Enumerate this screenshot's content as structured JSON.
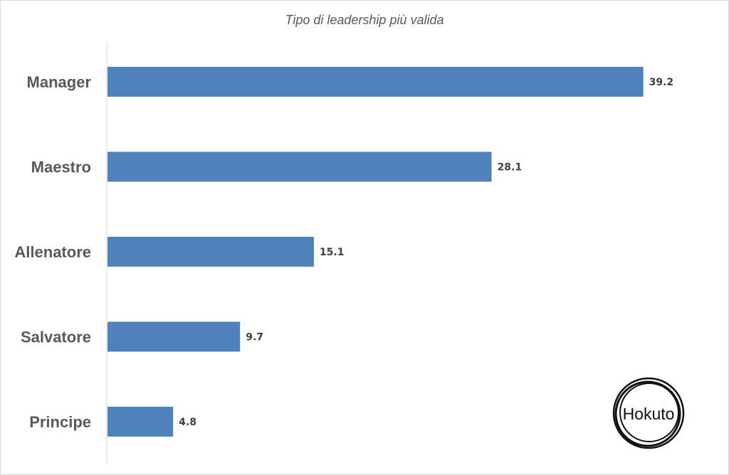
{
  "chart_data": {
    "type": "bar",
    "orientation": "horizontal",
    "title": "Tipo di leadership più valida",
    "categories": [
      "Manager",
      "Maestro",
      "Allenatore",
      "Salvatore",
      "Principe"
    ],
    "values": [
      39.2,
      28.1,
      15.1,
      9.7,
      4.8
    ],
    "value_labels": [
      "39.2",
      "28.1",
      "15.1",
      "9.7",
      "4.8"
    ],
    "xlim": [
      0,
      40
    ],
    "grid": false,
    "legend": "none",
    "bar_color": "#4f81bd"
  },
  "logo": {
    "text": "Hokuto",
    "ring_color": "#111111"
  }
}
